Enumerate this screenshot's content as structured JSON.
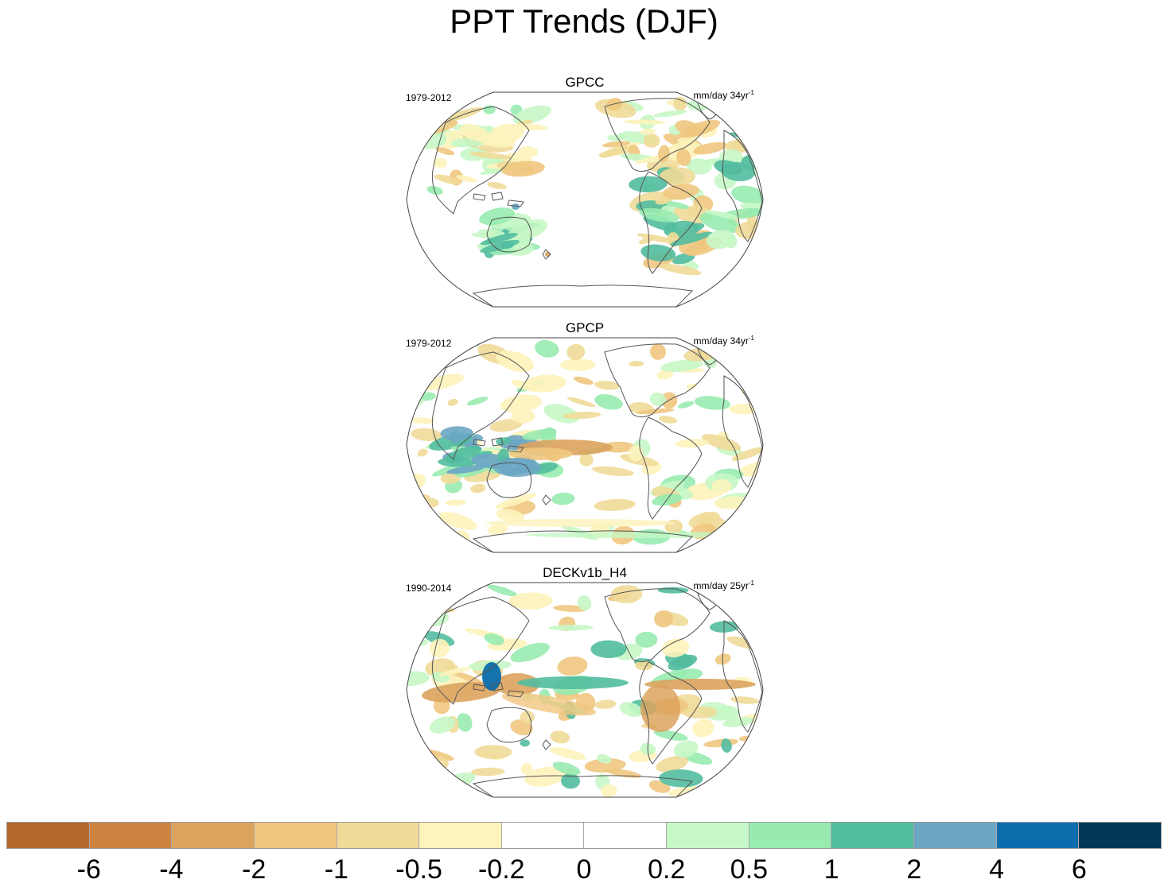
{
  "figure": {
    "title": "PPT Trends (DJF)"
  },
  "panels": [
    {
      "title": "GPCC",
      "period": "1979-2012",
      "units": "mm/day 34yr",
      "units_exp": "-1"
    },
    {
      "title": "GPCP",
      "period": "1979-2012",
      "units": "mm/day 34yr",
      "units_exp": "-1"
    },
    {
      "title": "DECKv1b_H4",
      "period": "1990-2014",
      "units": "mm/day 25yr",
      "units_exp": "-1"
    }
  ],
  "colorbar": {
    "colors": [
      "#b4672a",
      "#cc8440",
      "#dca35e",
      "#f0c680",
      "#f0da98",
      "#fdf3bb",
      "#ffffff",
      "#ffffff",
      "#c6f7c6",
      "#98ebb0",
      "#52bc9e",
      "#6ba6c4",
      "#0b6dac",
      "#023858"
    ],
    "labels": [
      "-6",
      "-4",
      "-2",
      "-1",
      "-0.5",
      "-0.2",
      "0",
      "0.2",
      "0.5",
      "1",
      "2",
      "4",
      "6"
    ]
  }
}
